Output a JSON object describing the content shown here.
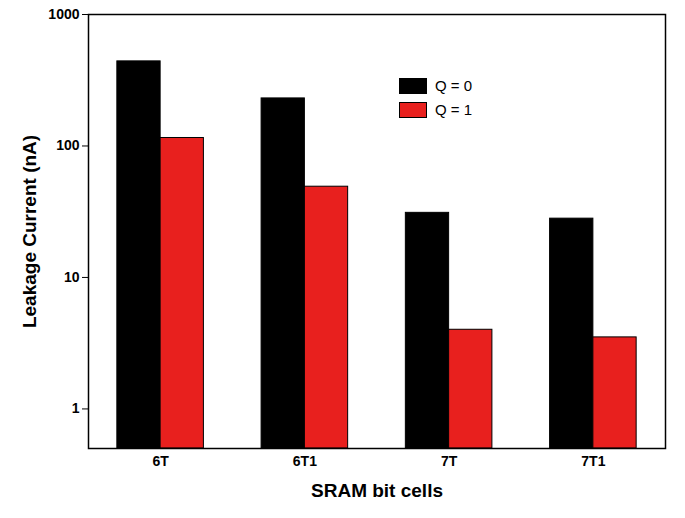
{
  "chart_data": {
    "type": "bar",
    "categories": [
      "6T",
      "6T1",
      "7T",
      "7T1"
    ],
    "series": [
      {
        "name": "Q = 0",
        "color": "#000000",
        "values": [
          440,
          230,
          31,
          28
        ]
      },
      {
        "name": "Q = 1",
        "color": "#e8201e",
        "values": [
          115,
          49,
          4,
          3.5
        ]
      }
    ],
    "x_label": "SRAM bit cells",
    "y_label": "Leakage Current (nA)",
    "log": "y",
    "ylim": [
      0.5,
      1000
    ],
    "yticks": [
      1,
      10,
      100,
      1000
    ],
    "legend": "upper right"
  }
}
